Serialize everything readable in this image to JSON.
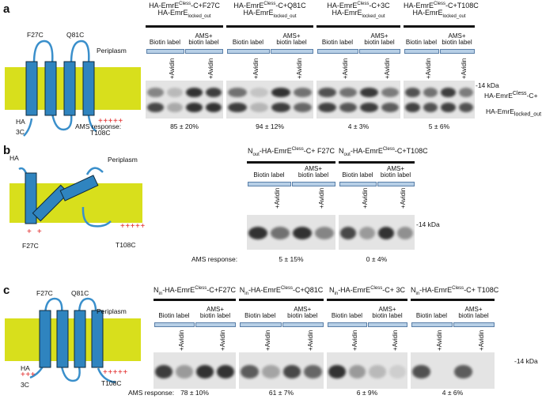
{
  "panels": [
    {
      "label": "a",
      "diagram": {
        "labels": [
          "F27C",
          "Q81C",
          "Periplasm",
          "HA",
          "3C",
          "T108C"
        ],
        "charges": "+++++"
      },
      "groups": [
        {
          "title_line1": "HA-EmrE<sup>Cless</sup>-C+F27C",
          "title_line2": "HA-EmrE<sub>locked_out</sub>",
          "lanes": [
            "Biotin label",
            "AMS+\nbiotin label"
          ],
          "avidin": [
            "+Avidin",
            "+Avidin"
          ],
          "response": "85 ± 20%"
        },
        {
          "title_line1": "HA-EmrE<sup>Cless</sup>-C+Q81C",
          "title_line2": "HA-EmrE<sub>locked_out</sub>",
          "lanes": [
            "Biotin label",
            "AMS+\nbiotin label"
          ],
          "avidin": [
            "+Avidin",
            "+Avidin"
          ],
          "response": "94 ± 12%"
        },
        {
          "title_line1": "HA-EmrE<sup>Cless</sup>-C+3C",
          "title_line2": "HA-EmrE<sub>locked_out</sub>",
          "lanes": [
            "Biotin label",
            "AMS+\nbiotin label"
          ],
          "avidin": [
            "+Avidin",
            "+Avidin"
          ],
          "response": "4 ± 3%"
        },
        {
          "title_line1": "HA-EmrE<sup>Cless</sup>-C+T108C",
          "title_line2": "HA-EmrE<sub>locked_out</sub>",
          "lanes": [
            "Biotin label",
            "AMS+\nbiotin label"
          ],
          "avidin": [
            "+Avidin",
            "+Avidin"
          ],
          "response": "5 ± 6%"
        }
      ],
      "marker": "-14 kDa",
      "band_labels": [
        "HA-EmrE<sup>Cless</sup>-C+",
        "HA-EmrE<sub>locked_out</sub>"
      ],
      "response_label": "AMS response:"
    },
    {
      "label": "b",
      "diagram": {
        "labels": [
          "HA",
          "Periplasm",
          "F27C",
          "T108C"
        ],
        "charges_left": "+  +",
        "charges_right": "+++++"
      },
      "groups": [
        {
          "title_line1": "N<sub>out</sub>-HA-EmrE<sup>Cless</sup>-C+ F27C",
          "lanes": [
            "Biotin label",
            "AMS+\nbiotin label"
          ],
          "avidin": [
            "+Avidin",
            "+Avidin"
          ],
          "response": "5 ± 15%"
        },
        {
          "title_line1": "N<sub>out</sub>-HA-EmrE<sup>Cless</sup>-C+T108C",
          "lanes": [
            "Biotin label",
            "AMS+\nbiotin label"
          ],
          "avidin": [
            "+Avidin",
            "+Avidin"
          ],
          "response": "0 ± 4%"
        }
      ],
      "marker": "-14 kDa",
      "response_label": "AMS response:"
    },
    {
      "label": "c",
      "diagram": {
        "labels": [
          "F27C",
          "Q81C",
          "Periplasm",
          "HA",
          "3C",
          "T108C"
        ],
        "charges_left": "+++",
        "charges_right": "+++++"
      },
      "groups": [
        {
          "title_line1": "N<sub>in</sub>-HA-EmrE<sup>Cless</sup>-C+F27C",
          "lanes": [
            "Biotin label",
            "AMS+\nbiotin label"
          ],
          "avidin": [
            "+Avidin",
            "+Avidin"
          ],
          "response": "78 ± 10%"
        },
        {
          "title_line1": "N<sub>in</sub>-HA-EmrE<sup>Cless</sup>-C+Q81C",
          "lanes": [
            "Biotin label",
            "AMS+\nbiotin label"
          ],
          "avidin": [
            "+Avidin",
            "+Avidin"
          ],
          "response": "61 ± 7%"
        },
        {
          "title_line1": "N<sub>in</sub>-HA-EmrE<sup>Cless</sup>-C+ 3C",
          "lanes": [
            "Biotin label",
            "AMS+\nbiotin label"
          ],
          "avidin": [
            "+Avidin",
            "+Avidin"
          ],
          "response": "6 ± 9%"
        },
        {
          "title_line1": "N<sub>in</sub>-HA-EmrE<sup>Cless</sup>-C+ T108C",
          "lanes": [
            "Biotin label",
            "AMS+\nbiotin label"
          ],
          "avidin": [
            "+Avidin",
            "+Avidin"
          ],
          "response": "4 ± 6%"
        }
      ],
      "marker": "-14 kDa",
      "response_label": "AMS response:"
    }
  ],
  "colors": {
    "membrane": "#d8df1c",
    "helix": "#2f84bf",
    "loop": "#3a8fcb",
    "lane_box": "#b7cfe6",
    "charge": "#e02020",
    "blot_bg": "#e4e4e4",
    "band": "#141414"
  }
}
